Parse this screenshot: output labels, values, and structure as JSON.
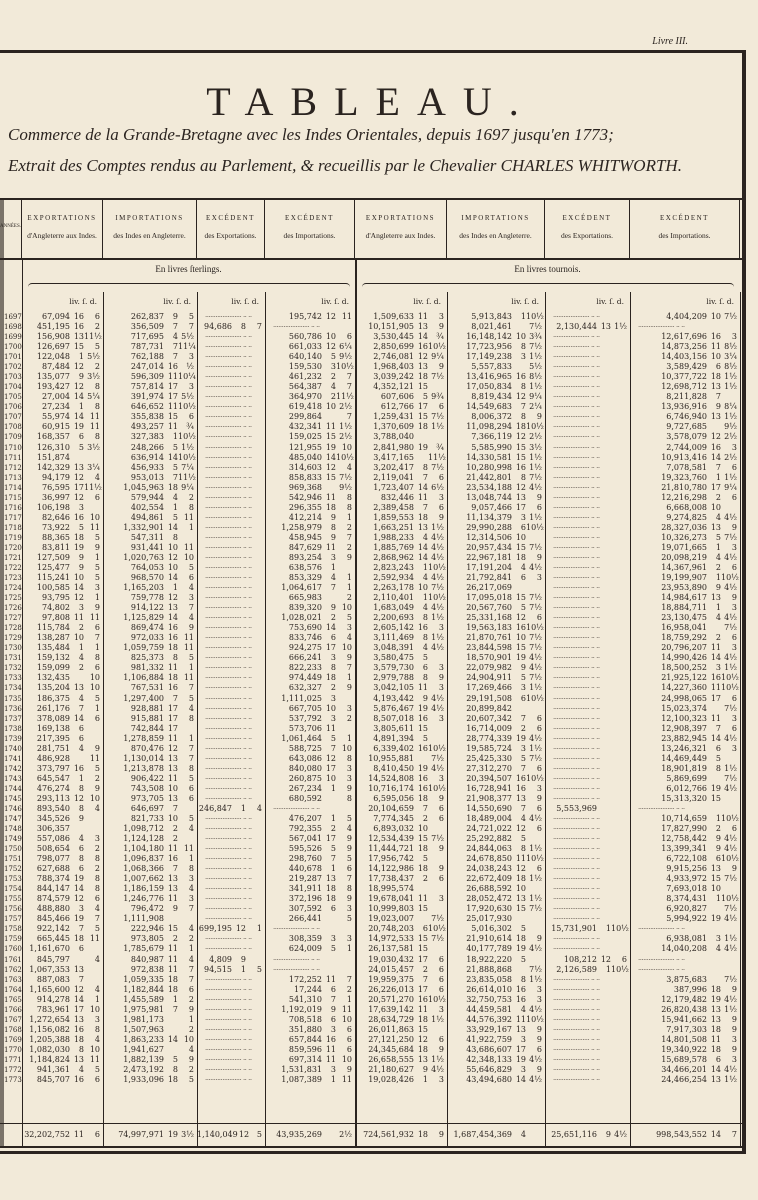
{
  "page_label": "Livre III.",
  "title": "TABLEAU.",
  "subtitle_1": "Commerce de la Grande-Bretagne avec les Indes Orientales, depuis 1697 jusqu'en 1773;",
  "subtitle_2": "Extrait des Comptes rendus au Parlement, & recueillis par le Chevalier CHARLES WHITWORTH.",
  "year_header": "ANNÉES.",
  "headers": [
    {
      "t": "EXPORTATIONS",
      "s": "d'Angleterre aux Indes."
    },
    {
      "t": "IMPORTATIONS",
      "s": "des Indes en Angleterre."
    },
    {
      "t": "EXCÉDENT",
      "s": "des Exportations."
    },
    {
      "t": "EXCÉDENT",
      "s": "des Importations."
    },
    {
      "t": "EXPORTATIONS",
      "s": "d'Angleterre aux Indes."
    },
    {
      "t": "IMPORTATIONS",
      "s": "des Indes en Angleterre."
    },
    {
      "t": "EXCÉDENT",
      "s": "des Exportations."
    },
    {
      "t": "EXCÉDENT",
      "s": "des Importations."
    }
  ],
  "currency_sterling": "En livres ſterlings.",
  "currency_tournois": "En livres tournois.",
  "units": "liv. ſ. d.",
  "rows": [
    [
      "1697",
      "67,094|16|6",
      "262,837|9|5",
      "",
      "195,742|12|11",
      "1,509,633|11|3",
      "5,913,843|1|10½",
      "",
      "4,404,209|10|7½"
    ],
    [
      "1698",
      "451,195|16|2",
      "356,509|7|7",
      "94,686|8|7",
      "",
      "10,151,905|13|9",
      "8,021,461||7½",
      "2,130,444|13|1½",
      ""
    ],
    [
      "1699",
      "156,908|13|11½",
      "717,695|4|5½",
      "",
      "560,786|10|6",
      "3,530,445|14|¾",
      "16,148,142|10|3¾",
      "",
      "12,617,696|16|3"
    ],
    [
      "1700",
      "126,697|15|5",
      "787,731|7|11¼",
      "",
      "661,033|12|6¼",
      "2,850,699|16|10½",
      "17,723,956|8|7½",
      "",
      "14,873,256|11|8½"
    ],
    [
      "1701",
      "122,048|1|5½",
      "762,188|7|3",
      "",
      "640,140|5|9½",
      "2,746,081|12|9¼",
      "17,149,238|3|1½",
      "",
      "14,403,156|10|3¼"
    ],
    [
      "1702",
      "87,484|12|2",
      "247,014|16|½",
      "",
      "159,530|3|10½",
      "1,968,403|13|9",
      "5,557,833||5½",
      "",
      "3,589,429|6|8½"
    ],
    [
      "1703",
      "135,077|9|3½",
      "596,309|11|10¼",
      "",
      "461,232|2|7",
      "3,039,242|18|7½",
      "13,416,965|16|8½",
      "",
      "10,377,722|18|1½"
    ],
    [
      "1704",
      "193,427|12|8",
      "757,814|17|3",
      "",
      "564,387|4|7",
      "4,352,121|15|",
      "17,050,834|8|1½",
      "",
      "12,698,712|13|1½"
    ],
    [
      "1705",
      "27,004|14|5¼",
      "391,974|17|5½",
      "",
      "364,970|2|11½",
      "607,606|5|9¾",
      "8,819,434|12|9¼",
      "",
      "8,211,828|7|"
    ],
    [
      "1706",
      "27,234|1|8",
      "646,652|11|10½",
      "",
      "619,418|10|2½",
      "612,766|17|6",
      "14,549,683|7|2¼",
      "",
      "13,936,916|9|8¼"
    ],
    [
      "1707",
      "55,974|14|11",
      "355,838|15|6",
      "",
      "299,864||7",
      "1,259,431|15|7½",
      "8,006,372|8|9",
      "",
      "6,746,940|13|1½"
    ],
    [
      "1708",
      "60,915|19|11",
      "493,257|11|¾",
      "",
      "432,341|11|1½",
      "1,370,609|18|1½",
      "11,098,294|18|10½",
      "",
      "9,727,685||9½"
    ],
    [
      "1709",
      "168,357|6|8",
      "327,383|1|10½",
      "",
      "159,025|15|2½",
      "3,788,040||",
      "7,366,119|12|2½",
      "",
      "3,578,079|12|2½"
    ],
    [
      "1710",
      "126,310|5|3½",
      "248,266|5|1½",
      "",
      "121,955|19|10",
      "2,841,980|19|¾",
      "5,585,990|15|3½",
      "",
      "2,744,009|16|3"
    ],
    [
      "1711",
      "151,874||",
      "636,914|14|10½",
      "",
      "485,040|14|10½",
      "3,417,165||11½",
      "14,330,581|15|1½",
      "",
      "10,913,416|14|2½"
    ],
    [
      "1712",
      "142,329|13|3¼",
      "456,933|5|7¼",
      "",
      "314,603|12|4",
      "3,202,417|8|7½",
      "10,280,998|16|1½",
      "",
      "7,078,581|7|6"
    ],
    [
      "1713",
      "94,179|12|4",
      "953,013|7|11½",
      "",
      "858,833|15|7½",
      "2,119,041|7|6",
      "21,442,801|8|7½",
      "",
      "19,323,760|1|1½"
    ],
    [
      "1714",
      "76,595|17|11½",
      "1,045,963|18|9¼",
      "",
      "969,368||9½",
      "1,723,407|14|6½",
      "23,534,188|12|4½",
      "",
      "21,810,780|17|9¼"
    ],
    [
      "1715",
      "36,997|12|6",
      "579,944|4|2",
      "",
      "542,946|11|8",
      "832,446|11|3",
      "13,048,744|13|9",
      "",
      "12,216,298|2|6"
    ],
    [
      "1716",
      "106,198|3|",
      "402,554|1|8",
      "",
      "296,355|18|8",
      "2,389,458|7|6",
      "9,057,466|17|6",
      "",
      "6,668,008|10|"
    ],
    [
      "1717",
      "82,646|16|10",
      "494,861|5|11",
      "",
      "412,214|9|1",
      "1,859,553|18|9",
      "11,134,379|3|1½",
      "",
      "9,274,825|4|4½"
    ],
    [
      "1718",
      "73,922|5|11",
      "1,332,901|14|1",
      "",
      "1,258,979|8|2",
      "1,663,251|13|1½",
      "29,990,288|6|10½",
      "",
      "28,327,036|13|9"
    ],
    [
      "1719",
      "88,365|18|5",
      "547,311|8|",
      "",
      "458,945|9|7",
      "1,988,233|4|4½",
      "12,314,506|10|",
      "",
      "10,326,273|5|7½"
    ],
    [
      "1720",
      "83,811|19|9",
      "931,441|10|11",
      "",
      "847,629|11|2",
      "1,885,769|14|4½",
      "20,957,434|15|7½",
      "",
      "19,071,665|1|3"
    ],
    [
      "1721",
      "127,509|9|1",
      "1,020,763|12|10",
      "",
      "893,254|3|9",
      "2,868,962|14|4½",
      "22,967,181|18|9",
      "",
      "20,098,219|4|4½"
    ],
    [
      "1722",
      "125,477|9|5",
      "764,053|10|5",
      "",
      "638,576|1|",
      "2,823,243|1|10½",
      "17,191,204|4|4½",
      "",
      "14,367,961|2|6"
    ],
    [
      "1723",
      "115,241|10|5",
      "968,570|14|6",
      "",
      "853,329|4|1",
      "2,592,934|4|4½",
      "21,792,841|6|3",
      "",
      "19,199,907|1|10½"
    ],
    [
      "1724",
      "100,585|14|3",
      "1,165,203|1|4",
      "",
      "1,064,617|7|1",
      "2,263,178|10|7½",
      "26,217,069||",
      "",
      "23,953,890|9|4½"
    ],
    [
      "1725",
      "93,795|12|1",
      "759,778|12|3",
      "",
      "665,983||2",
      "2,110,401|1|10½",
      "17,095,018|15|7½",
      "",
      "14,984,617|13|9"
    ],
    [
      "1726",
      "74,802|3|9",
      "914,122|13|7",
      "",
      "839,320|9|10",
      "1,683,049|4|4½",
      "20,567,760|5|7½",
      "",
      "18,884,711|1|3"
    ],
    [
      "1727",
      "97,808|11|11",
      "1,125,829|14|4",
      "",
      "1,028,021|2|5",
      "2,200,693|8|1½",
      "25,331,168|12|6",
      "",
      "23,130,475|4|4½"
    ],
    [
      "1728",
      "115,784|2|6",
      "869,474|16|9",
      "",
      "753,690|14|3",
      "2,605,142|16|3",
      "19,563,183|16|10½",
      "",
      "16,958,041||7½"
    ],
    [
      "1729",
      "138,287|10|7",
      "972,033|16|11",
      "",
      "833,746|6|4",
      "3,111,469|8|1½",
      "21,870,761|10|7½",
      "",
      "18,759,292|2|6"
    ],
    [
      "1730",
      "135,484|1|1",
      "1,059,759|18|11",
      "",
      "924,275|17|10",
      "3,048,391|4|4½",
      "23,844,598|15|7½",
      "",
      "20,796,207|11|3"
    ],
    [
      "1731",
      "159,132|4|8",
      "825,373|8|5",
      "",
      "666,241|3|9",
      "3,580,475|5|",
      "18,570,901|19|4½",
      "",
      "14,990,426|14|4½"
    ],
    [
      "1732",
      "159,099|2|6",
      "981,332|11|1",
      "",
      "822,233|8|7",
      "3,579,730|6|3",
      "22,079,982|9|4½",
      "",
      "18,500,252|3|1½"
    ],
    [
      "1733",
      "132,435||10",
      "1,106,884|18|11",
      "",
      "974,449|18|1",
      "2,979,788|8|9",
      "24,904,911|5|7½",
      "",
      "21,925,122|16|10½"
    ],
    [
      "1734",
      "135,204|13|10",
      "767,531|16|7",
      "",
      "632,327|2|9",
      "3,042,105|11|3",
      "17,269,466|3|1½",
      "",
      "14,227,360|11|10½"
    ],
    [
      "1735",
      "186,375|4|5",
      "1,297,400|7|5",
      "",
      "1,111,025|3|",
      "4,193,442|9|4½",
      "29,191,508|6|10½",
      "",
      "24,998,065|17|6"
    ],
    [
      "1736",
      "261,176|7|1",
      "928,881|17|4",
      "",
      "667,705|10|3",
      "5,876,467|19|4½",
      "20,899,842||",
      "",
      "15,023,374||7½"
    ],
    [
      "1737",
      "378,089|14|6",
      "915,881|17|8",
      "",
      "537,792|3|2",
      "8,507,018|16|3",
      "20,607,342|7|6",
      "",
      "12,100,323|11|3"
    ],
    [
      "1738",
      "169,138|6|",
      "742,844|17|",
      "",
      "573,706|11|",
      "3,805,611|15|",
      "16,714,009|2|6",
      "",
      "12,908,397|7|6"
    ],
    [
      "1739",
      "217,395|6|",
      "1,278,859|11|1",
      "",
      "1,061,464|5|1",
      "4,891,394|5|",
      "28,774,339|19|4½",
      "",
      "23,882,945|14|4½"
    ],
    [
      "1740",
      "281,751|4|9",
      "870,476|12|7",
      "",
      "588,725|7|10",
      "6,339,402|16|10½",
      "19,585,724|3|1½",
      "",
      "13,246,321|6|3"
    ],
    [
      "1741",
      "486,928||11",
      "1,130,014|13|7",
      "",
      "643,086|12|8",
      "10,955,881||7½",
      "25,425,330|5|7½",
      "",
      "14,469,449|5|"
    ],
    [
      "1742",
      "373,797|16|5",
      "1,213,878|13|8",
      "",
      "840,080|17|3",
      "8,410,450|19|4½",
      "27,312,270|7|6",
      "",
      "18,901,819|8|1½"
    ],
    [
      "1743",
      "645,547|1|2",
      "906,422|11|5",
      "",
      "260,875|10|3",
      "14,524,808|16|3",
      "20,394,507|16|10½",
      "",
      "5,869,699||7½"
    ],
    [
      "1744",
      "476,274|8|9",
      "743,508|10|6",
      "",
      "267,234|1|9",
      "10,716,174|16|10½",
      "16,728,941|16|3",
      "",
      "6,012,766|19|4½"
    ],
    [
      "1745",
      "293,113|12|10",
      "973,705|13|6",
      "",
      "680,592||8",
      "6,595,056|18|9",
      "21,908,377|13|9",
      "",
      "15,313,320|15|"
    ],
    [
      "1746",
      "893,540|8|4",
      "646,697|7|",
      "246,847|1|4",
      "",
      "20,104,659|7|6",
      "14,550,690|7|6",
      "5,553,969||",
      ""
    ],
    [
      "1747",
      "345,526|9|",
      "821,733|10|5",
      "",
      "476,207|1|5",
      "7,774,345|2|6",
      "18,489,004|4|4½",
      "",
      "10,714,659|1|10½"
    ],
    [
      "1748",
      "306,357||",
      "1,098,712|2|4",
      "",
      "792,355|2|4",
      "6,893,032|10|",
      "24,721,022|12|6",
      "",
      "17,827,990|2|6"
    ],
    [
      "1749",
      "557,086|4|3",
      "1,124,128|2|",
      "",
      "567,041|17|9",
      "12,534,439|15|7½",
      "25,292,882|5|",
      "",
      "12,758,442|9|4½"
    ],
    [
      "1750",
      "508,654|6|2",
      "1,104,180|11|11",
      "",
      "595,526|5|9",
      "11,444,721|18|9",
      "24,844,063|8|1½",
      "",
      "13,399,341|9|4½"
    ],
    [
      "1751",
      "798,077|8|8",
      "1,096,837|16|1",
      "",
      "298,760|7|5",
      "17,956,742|5|",
      "24,678,850|11|10½",
      "",
      "6,722,108|6|10½"
    ],
    [
      "1752",
      "627,688|6|2",
      "1,068,366|7|8",
      "",
      "440,678|1|6",
      "14,122,986|18|9",
      "24,038,243|12|6",
      "",
      "9,915,256|13|9"
    ],
    [
      "1753",
      "788,374|19|8",
      "1,007,662|13|3",
      "",
      "219,287|13|7",
      "17,738,437|2|6",
      "22,672,409|18|1½",
      "",
      "4,933,972|15|7½"
    ],
    [
      "1754",
      "844,147|14|8",
      "1,186,159|13|4",
      "",
      "341,911|18|8",
      "18,995,574||",
      "26,688,592|10|",
      "",
      "7,693,018|10|"
    ],
    [
      "1755",
      "874,579|12|6",
      "1,246,776|11|3",
      "",
      "372,196|18|9",
      "19,678,041|11|3",
      "28,052,472|13|1½",
      "",
      "8,374,431|1|10½"
    ],
    [
      "1756",
      "488,880|3|4",
      "796,472|9|7",
      "",
      "307,592|6|3",
      "10,999,803|15|",
      "17,920,630|15|7½",
      "",
      "6,920,827||7½"
    ],
    [
      "1757",
      "845,466|19|7",
      "1,111,908||",
      "",
      "266,441||5",
      "19,023,007||7½",
      "25,017,930||",
      "",
      "5,994,922|19|4½"
    ],
    [
      "1758",
      "922,142|7|5",
      "222,946|15|4",
      "699,195|12|1",
      "",
      "20,748,203|6|10½",
      "5,016,302|5|",
      "15,731,901|1|10½",
      ""
    ],
    [
      "1759",
      "665,445|18|11",
      "973,805|2|2",
      "",
      "308,359|3|3",
      "14,972,533|15|7½",
      "21,910,614|18|9",
      "",
      "6,938,081|3|1½"
    ],
    [
      "1760",
      "1,161,670|6|",
      "1,785,679|11|1",
      "",
      "624,009|5|1",
      "26,137,581|15|",
      "40,177,789|19|4½",
      "",
      "14,040,208|4|4½"
    ],
    [
      "1761",
      "845,797||4",
      "840,987|11|4",
      "4,809|9|",
      "",
      "19,030,432|17|6",
      "18,922,220|5|",
      "108,212|12|6",
      ""
    ],
    [
      "1762",
      "1,067,353|13|",
      "972,838|11|7",
      "94,515|1|5",
      "",
      "24,015,457|2|6",
      "21,888,868||7½",
      "2,126,589|1|10½",
      ""
    ],
    [
      "1763",
      "887,083|7|",
      "1,059,335|18|7",
      "",
      "172,252|11|7",
      "19,959,375|7|6",
      "23,835,058|8|1½",
      "",
      "3,875,683||7½"
    ],
    [
      "1764",
      "1,165,600|12|4",
      "1,182,844|18|6",
      "",
      "17,244|6|2",
      "26,226,013|17|6",
      "26,614,010|16|3",
      "",
      "387,996|18|9"
    ],
    [
      "1765",
      "914,278|14|1",
      "1,455,589|1|2",
      "",
      "541,310|7|1",
      "20,571,270|16|10½",
      "32,750,753|16|3",
      "",
      "12,179,482|19|4½"
    ],
    [
      "1766",
      "783,961|17|10",
      "1,975,981|7|9",
      "",
      "1,192,019|9|11",
      "17,639,142|11|3",
      "44,459,581|4|4½",
      "",
      "26,820,438|13|1½"
    ],
    [
      "1767",
      "1,272,654|13|3",
      "1,981,173||1",
      "",
      "708,518|6|10",
      "28,634,729|18|1½",
      "44,576,392|11|10½",
      "",
      "15,941,662|13|9"
    ],
    [
      "1768",
      "1,156,082|16|8",
      "1,507,963||2",
      "",
      "351,880|3|6",
      "26,011,863|15|",
      "33,929,167|13|9",
      "",
      "7,917,303|18|9"
    ],
    [
      "1769",
      "1,205,388|18|4",
      "1,863,233|14|10",
      "",
      "657,844|16|6",
      "27,121,250|12|6",
      "41,922,759|3|9",
      "",
      "14,801,508|11|3"
    ],
    [
      "1770",
      "1,082,030|8|10",
      "1,941,627||4",
      "",
      "859,596|11|6",
      "24,345,684|18|9",
      "43,686,607|17|6",
      "",
      "19,340,922|18|9"
    ],
    [
      "1771",
      "1,184,824|13|11",
      "1,882,139|5|9",
      "",
      "697,314|11|10",
      "26,658,555|13|1½",
      "42,348,133|19|4½",
      "",
      "15,689,578|6|3"
    ],
    [
      "1772",
      "941,361|4|5",
      "2,473,192|8|2",
      "",
      "1,531,831|3|9",
      "21,180,627|9|4½",
      "55,646,829|3|9",
      "",
      "34,466,201|14|4½"
    ],
    [
      "1773",
      "845,707|16|6",
      "1,933,096|18|5",
      "",
      "1,087,389|1|11",
      "19,028,426|1|3",
      "43,494,680|14|4½",
      "",
      "24,466,254|13|1½"
    ]
  ],
  "totals": [
    "32,202,752|11|6",
    "74,997,971|19|3½",
    "1,140,049|12|5",
    "43,935,269||2½",
    "724,561,932|18|9",
    "1,687,454,369|4|",
    "25,651,116|9|4½",
    "998,543,552|14|7"
  ],
  "colors": {
    "paper": "#f2ead9",
    "ink": "#2b2420"
  }
}
